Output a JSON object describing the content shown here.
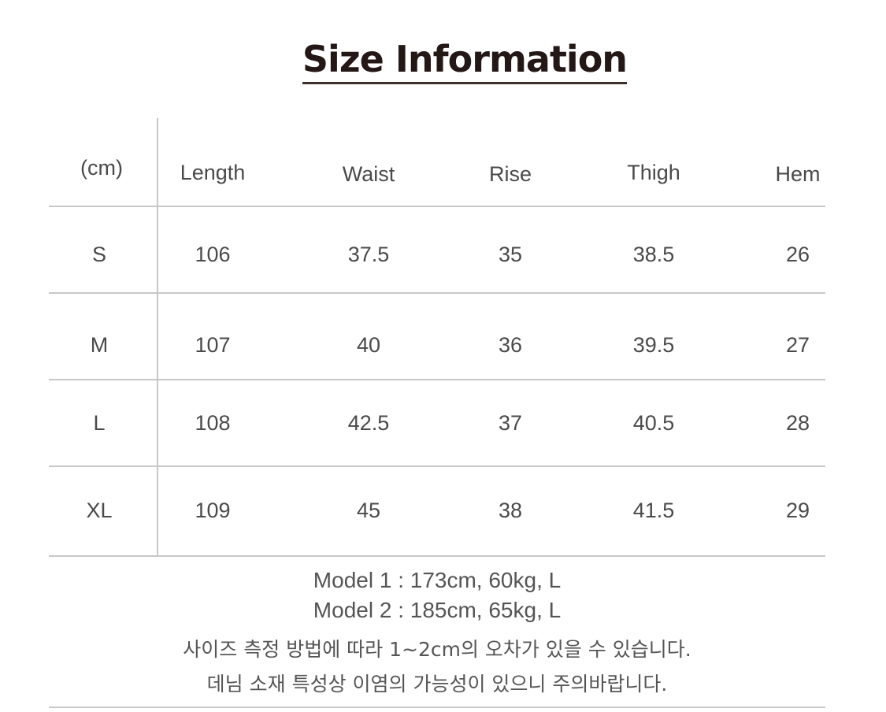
{
  "title": "Size Information",
  "table": {
    "unit_label": "(cm)",
    "headers": [
      "Length",
      "Waist",
      "Rise",
      "Thigh",
      "Hem"
    ],
    "rows": [
      {
        "size": "S",
        "values": [
          "106",
          "37.5",
          "35",
          "38.5",
          "26"
        ]
      },
      {
        "size": "M",
        "values": [
          "107",
          "40",
          "36",
          "39.5",
          "27"
        ]
      },
      {
        "size": "L",
        "values": [
          "108",
          "42.5",
          "37",
          "40.5",
          "28"
        ]
      },
      {
        "size": "XL",
        "values": [
          "109",
          "45",
          "38",
          "41.5",
          "29"
        ]
      }
    ]
  },
  "notes": {
    "model1": "Model 1  : 173cm, 60kg, L",
    "model2": "Model 2  : 185cm, 65kg, L",
    "note1": "사이즈 측정 방법에 따라 1~2cm의 오차가 있을 수 있습니다.",
    "note2": "데님 소재 특성상 이염의 가능성이 있으니 주의바랍니다."
  }
}
